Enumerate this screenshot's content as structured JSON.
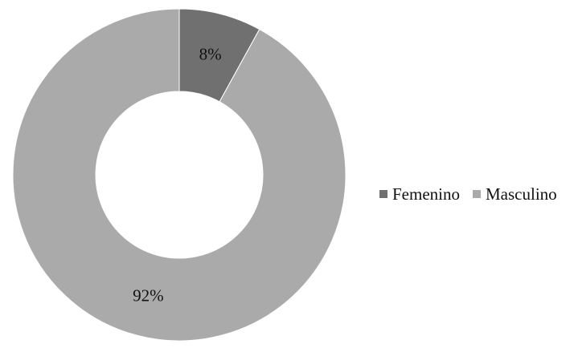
{
  "chart_data": {
    "type": "pie",
    "donut": true,
    "title": "",
    "categories": [
      "Femenino",
      "Masculino"
    ],
    "values": [
      8,
      92
    ],
    "unit": "%",
    "data_labels": [
      "8%",
      "92%"
    ],
    "colors": [
      "#707070",
      "#aaaaaa"
    ],
    "legend_position": "right",
    "start_angle_deg": 0,
    "direction": "clockwise"
  }
}
